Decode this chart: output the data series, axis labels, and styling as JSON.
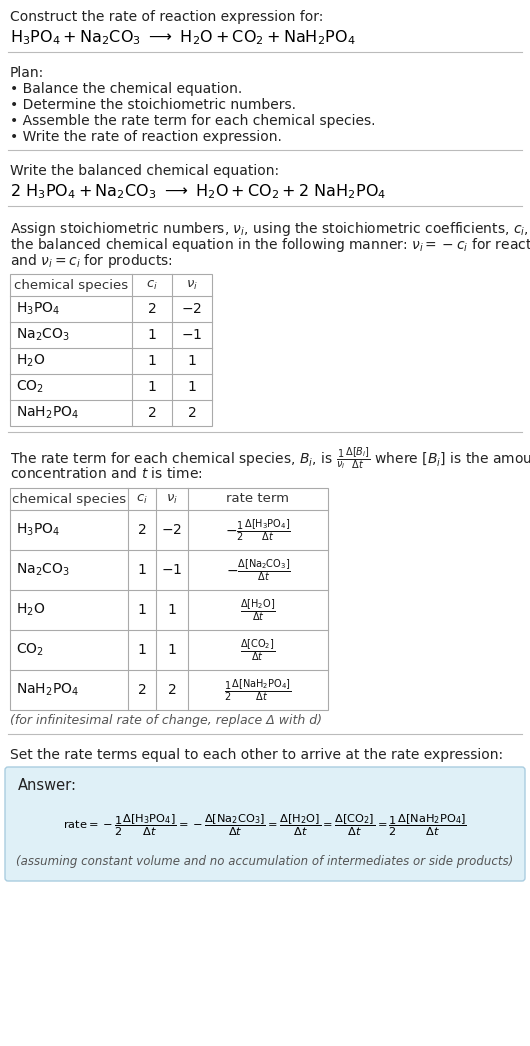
{
  "bg_color": "#ffffff",
  "text_color": "#333333",
  "title_line1": "Construct the rate of reaction expression for:",
  "plan_header": "Plan:",
  "plan_items": [
    "• Balance the chemical equation.",
    "• Determine the stoichiometric numbers.",
    "• Assemble the rate term for each chemical species.",
    "• Write the rate of reaction expression."
  ],
  "balanced_header": "Write the balanced chemical equation:",
  "stoich_text1": "Assign stoichiometric numbers, $\\nu_i$, using the stoichiometric coefficients, $c_i$, from",
  "stoich_text2": "the balanced chemical equation in the following manner: $\\nu_i = -c_i$ for reactants",
  "stoich_text3": "and $\\nu_i = c_i$ for products:",
  "rate_text1": "The rate term for each chemical species, $B_i$, is $\\frac{1}{\\nu_i}\\frac{\\Delta[B_i]}{\\Delta t}$ where $[B_i]$ is the amount",
  "rate_text2": "concentration and $t$ is time:",
  "infinitesimal_note": "(for infinitesimal rate of change, replace Δ with d)",
  "set_equal_header": "Set the rate terms equal to each other to arrive at the rate expression:",
  "answer_label": "Answer:",
  "answer_box_color": "#dff0f7",
  "answer_box_border": "#aacde0",
  "footnote": "(assuming constant volume and no accumulation of intermediates or side products)"
}
